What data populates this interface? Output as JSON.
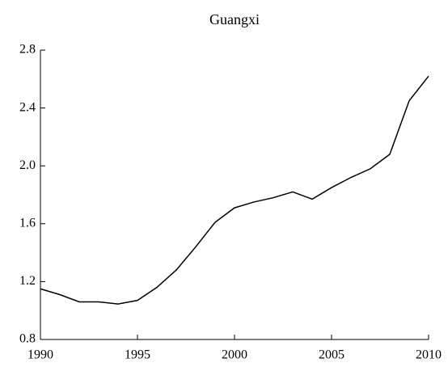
{
  "chart_data": {
    "type": "line",
    "title": "Guangxi",
    "x": [
      1990,
      1991,
      1992,
      1993,
      1994,
      1995,
      1996,
      1997,
      1998,
      1999,
      2000,
      2001,
      2002,
      2003,
      2004,
      2005,
      2006,
      2007,
      2008,
      2009,
      2010
    ],
    "series": [
      {
        "name": "Guangxi",
        "color": "#000000",
        "values": [
          1.15,
          1.11,
          1.06,
          1.06,
          1.045,
          1.07,
          1.16,
          1.28,
          1.44,
          1.61,
          1.71,
          1.75,
          1.78,
          1.82,
          1.77,
          1.85,
          1.92,
          1.98,
          2.08,
          2.45,
          2.62
        ]
      }
    ],
    "xlim": [
      1990,
      2010
    ],
    "xticks": [
      1990,
      1995,
      2000,
      2005,
      2010
    ],
    "ylim": [
      0.8,
      2.8
    ],
    "yticks": [
      0.8,
      1.2,
      1.6,
      {
        "value": 2,
        "label": "2.0"
      },
      2.4,
      2.8
    ]
  }
}
